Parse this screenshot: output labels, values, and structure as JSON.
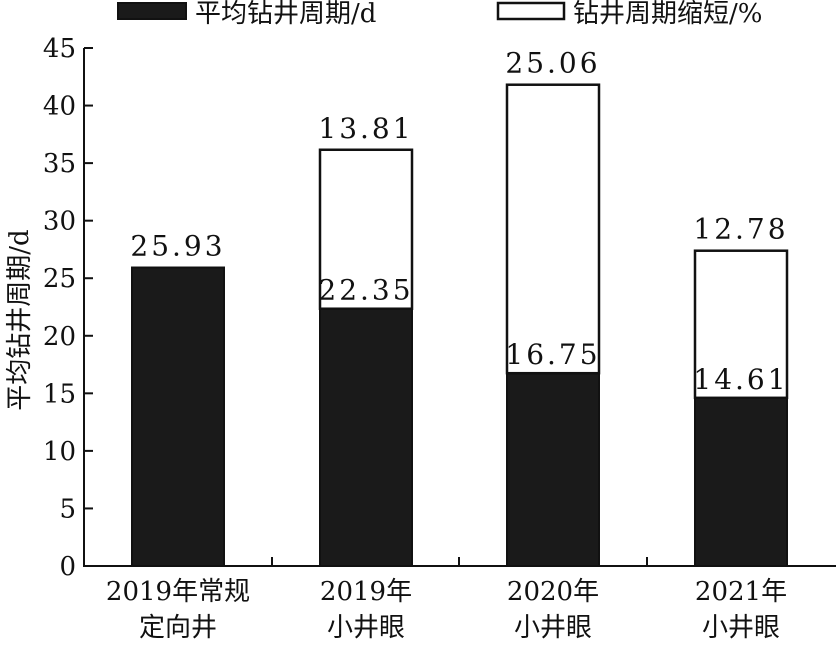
{
  "chart_data": {
    "type": "bar",
    "stacked": true,
    "categories": [
      [
        "2019年常规",
        "定向井"
      ],
      [
        "2019年",
        "小井眼"
      ],
      [
        "2020年",
        "小井眼"
      ],
      [
        "2021年",
        "小井眼"
      ]
    ],
    "series": [
      {
        "name": "平均钻井周期/d",
        "color": "#1a1a1a",
        "values": [
          25.93,
          22.35,
          16.75,
          14.61
        ],
        "labels": [
          "25.93",
          "22.35",
          "16.75",
          "14.61"
        ]
      },
      {
        "name": "钻井周期缩短/%",
        "color": "#ffffff",
        "values": [
          0,
          13.81,
          25.06,
          12.78
        ],
        "labels": [
          "",
          "13.81",
          "25.06",
          "12.78"
        ]
      }
    ],
    "ylabel": "平均钻井周期/d",
    "ylim": [
      0,
      45
    ],
    "yticks": [
      "0",
      "5",
      "10",
      "15",
      "20",
      "25",
      "30",
      "35",
      "40",
      "45"
    ],
    "grid": false,
    "legend_position": "top"
  }
}
